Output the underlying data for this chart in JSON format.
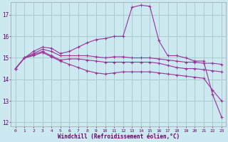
{
  "xlabel": "Windchill (Refroidissement éolien,°C)",
  "bg_color": "#cce8f0",
  "grid_color": "#aacccc",
  "line_color": "#993399",
  "xlim": [
    -0.5,
    23.5
  ],
  "ylim": [
    11.8,
    17.6
  ],
  "yticks": [
    12,
    13,
    14,
    15,
    16,
    17
  ],
  "xticks": [
    0,
    1,
    2,
    3,
    4,
    5,
    6,
    7,
    8,
    9,
    10,
    11,
    12,
    13,
    14,
    15,
    16,
    17,
    18,
    19,
    20,
    21,
    22,
    23
  ],
  "line1_x": [
    0,
    1,
    2,
    3,
    4,
    5,
    6,
    7,
    8,
    9,
    10,
    11,
    12,
    13,
    14,
    15,
    16,
    17,
    18,
    19,
    20,
    21,
    22,
    23
  ],
  "line1_y": [
    14.5,
    15.0,
    15.2,
    15.4,
    15.3,
    15.1,
    15.1,
    15.1,
    15.1,
    15.05,
    15.0,
    15.05,
    15.05,
    15.0,
    15.0,
    15.0,
    14.95,
    14.9,
    14.85,
    14.8,
    14.8,
    14.75,
    14.75,
    14.7
  ],
  "line2_x": [
    0,
    1,
    2,
    3,
    4,
    5,
    6,
    7,
    8,
    9,
    10,
    11,
    12,
    13,
    14,
    15,
    16,
    17,
    18,
    19,
    20,
    21,
    22,
    23
  ],
  "line2_y": [
    14.5,
    15.0,
    15.3,
    15.5,
    15.45,
    15.2,
    15.3,
    15.5,
    15.7,
    15.85,
    15.9,
    16.0,
    16.0,
    17.35,
    17.45,
    17.4,
    15.8,
    15.1,
    15.1,
    15.0,
    14.85,
    14.85,
    13.3,
    12.25
  ],
  "line3_x": [
    0,
    1,
    2,
    3,
    4,
    5,
    6,
    7,
    8,
    9,
    10,
    11,
    12,
    13,
    14,
    15,
    16,
    17,
    18,
    19,
    20,
    21,
    22,
    23
  ],
  "line3_y": [
    14.5,
    15.0,
    15.15,
    15.3,
    15.1,
    14.9,
    14.95,
    14.95,
    14.9,
    14.85,
    14.8,
    14.8,
    14.8,
    14.8,
    14.8,
    14.8,
    14.75,
    14.65,
    14.55,
    14.5,
    14.5,
    14.45,
    14.4,
    14.35
  ],
  "line4_x": [
    0,
    1,
    2,
    3,
    4,
    5,
    6,
    7,
    8,
    9,
    10,
    11,
    12,
    13,
    14,
    15,
    16,
    17,
    18,
    19,
    20,
    21,
    22,
    23
  ],
  "line4_y": [
    14.5,
    15.0,
    15.1,
    15.25,
    15.05,
    14.85,
    14.7,
    14.55,
    14.4,
    14.3,
    14.25,
    14.3,
    14.35,
    14.35,
    14.35,
    14.35,
    14.3,
    14.25,
    14.2,
    14.15,
    14.1,
    14.05,
    13.5,
    13.0
  ]
}
